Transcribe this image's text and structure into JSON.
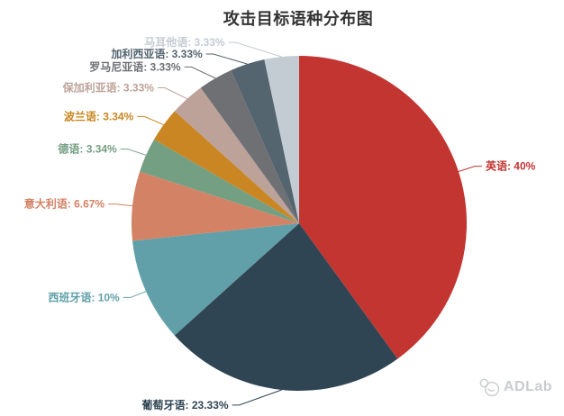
{
  "chart_data": {
    "type": "pie",
    "title": "攻击目标语种分布图",
    "legend_position": "none",
    "label_style": "outside-with-leader-lines",
    "items": [
      {
        "name": "英语",
        "percent": 40,
        "label": "英语: 40%",
        "color": "#c23531"
      },
      {
        "name": "葡萄牙语",
        "percent": 23.33,
        "label": "葡萄牙语: 23.33%",
        "color": "#2f4554"
      },
      {
        "name": "西班牙语",
        "percent": 10,
        "label": "西班牙语: 10%",
        "color": "#61a0a8"
      },
      {
        "name": "意大利语",
        "percent": 6.67,
        "label": "意大利语: 6.67%",
        "color": "#d48265"
      },
      {
        "name": "德语",
        "percent": 3.34,
        "label": "德语: 3.34%",
        "color": "#749f83"
      },
      {
        "name": "波兰语",
        "percent": 3.34,
        "label": "波兰语: 3.34%",
        "color": "#ca8622"
      },
      {
        "name": "保加利亚语",
        "percent": 3.33,
        "label": "保加利亚语: 3.33%",
        "color": "#bda29a"
      },
      {
        "name": "罗马尼亚语",
        "percent": 3.33,
        "label": "罗马尼亚语: 3.33%",
        "color": "#6e7074"
      },
      {
        "name": "加利西亚语",
        "percent": 3.33,
        "label": "加利西亚语: 3.33%",
        "color": "#546570"
      },
      {
        "name": "马耳他语",
        "percent": 3.33,
        "label": "马耳他语: 3.33%",
        "color": "#c4ccd3"
      }
    ]
  },
  "watermark": {
    "brand": "ADLab",
    "color": "#c9ccce"
  }
}
